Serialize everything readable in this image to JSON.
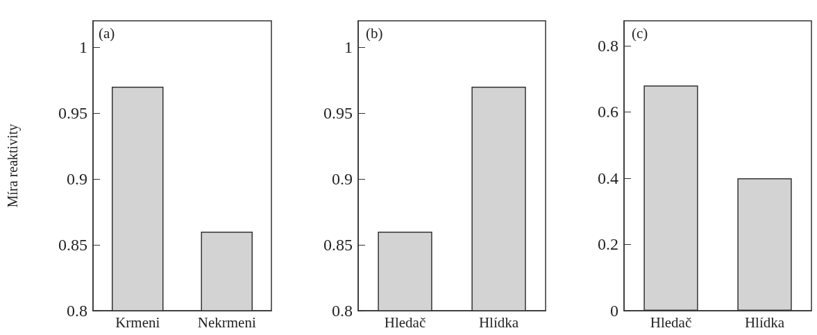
{
  "chart_data": [
    {
      "type": "bar",
      "title": "(a)",
      "ylabel": "Míra reaktivity",
      "categories": [
        "Krmeni",
        "Nekrmeni"
      ],
      "values": [
        0.97,
        0.86
      ],
      "color": "#d3d3d3",
      "ylim": [
        0.8,
        1.02
      ],
      "yticks": [
        0.8,
        0.85,
        0.9,
        0.95,
        1
      ]
    },
    {
      "type": "bar",
      "title": "(b)",
      "categories": [
        "Hledač",
        "Hlídka"
      ],
      "values": [
        0.86,
        0.97
      ],
      "color": "#d3d3d3",
      "ylim": [
        0.8,
        1.02
      ],
      "yticks": [
        0.8,
        0.85,
        0.9,
        0.95,
        1
      ]
    },
    {
      "type": "bar",
      "title": "(c)",
      "categories": [
        "Hledač",
        "Hlídka"
      ],
      "values": [
        0.68,
        0.4
      ],
      "color": "#d3d3d3",
      "ylim": [
        0,
        0.875
      ],
      "yticks": [
        0,
        0.2,
        0.4,
        0.6,
        0.8
      ]
    }
  ]
}
